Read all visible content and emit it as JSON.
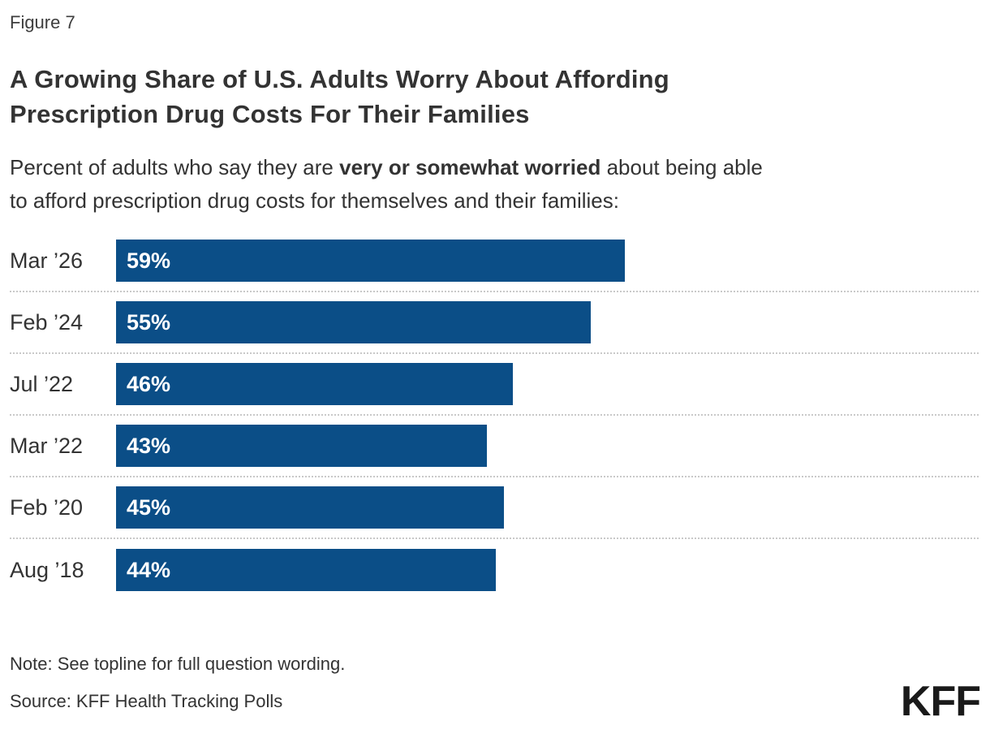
{
  "figure_label": "Figure 7",
  "title": {
    "line1": "A Growing Share of U.S. Adults Worry About Affording",
    "line2": "Prescription Drug Costs For Their Families"
  },
  "subtitle": {
    "line1_prefix": "Percent of adults who say they are ",
    "line1_bold": "very or somewhat worried",
    "line1_suffix": " about being able",
    "line2": "to afford prescription drug costs for themselves and their families:"
  },
  "chart_data": {
    "type": "bar",
    "orientation": "horizontal",
    "categories": [
      "Mar ’26",
      "Feb ’24",
      "Jul ’22",
      "Mar ’22",
      "Feb ’20",
      "Aug ’18"
    ],
    "values": [
      59,
      55,
      46,
      43,
      45,
      44
    ],
    "value_labels": [
      "59%",
      "55%",
      "46%",
      "43%",
      "45%",
      "44%"
    ],
    "xlim": [
      0,
      100
    ],
    "bar_color": "#0B4E87",
    "value_label_color": "#ffffff",
    "separator_style": "dotted",
    "separator_color": "#c9c9c9",
    "legend": "none",
    "grid": "off"
  },
  "footer": {
    "note": "Note: See topline for full question wording.",
    "source": "Source: KFF Health Tracking Polls",
    "logo": "KFF"
  }
}
